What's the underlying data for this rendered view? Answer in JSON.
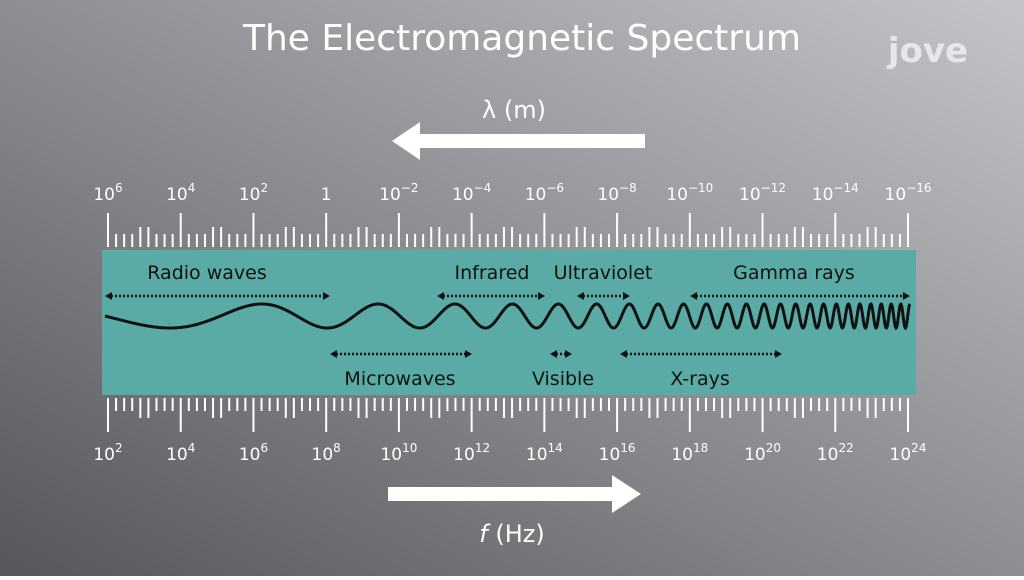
{
  "header": {
    "title": "The Electromagnetic Spectrum",
    "logo": "jove"
  },
  "wavelength": {
    "label": "λ (m)",
    "ticks": [
      {
        "base": "10",
        "exp": "6"
      },
      {
        "base": "10",
        "exp": "4"
      },
      {
        "base": "10",
        "exp": "2"
      },
      {
        "base": "1"
      },
      {
        "base": "10",
        "exp": "−2"
      },
      {
        "base": "10",
        "exp": "−4"
      },
      {
        "base": "10",
        "exp": "−6"
      },
      {
        "base": "10",
        "exp": "−8"
      },
      {
        "base": "10",
        "exp": "−10"
      },
      {
        "base": "10",
        "exp": "−12"
      },
      {
        "base": "10",
        "exp": "−14"
      },
      {
        "base": "10",
        "exp": "−16"
      }
    ]
  },
  "frequency": {
    "symbol": "f",
    "unit": "(Hz)",
    "ticks": [
      {
        "base": "10",
        "exp": "2"
      },
      {
        "base": "10",
        "exp": "4"
      },
      {
        "base": "10",
        "exp": "6"
      },
      {
        "base": "10",
        "exp": "8"
      },
      {
        "base": "10",
        "exp": "10"
      },
      {
        "base": "10",
        "exp": "12"
      },
      {
        "base": "10",
        "exp": "14"
      },
      {
        "base": "10",
        "exp": "16"
      },
      {
        "base": "10",
        "exp": "18"
      },
      {
        "base": "10",
        "exp": "20"
      },
      {
        "base": "10",
        "exp": "22"
      },
      {
        "base": "10",
        "exp": "24"
      }
    ]
  },
  "bands": [
    {
      "label": "Radio waves"
    },
    {
      "label": "Infrared"
    },
    {
      "label": "Ultraviolet"
    },
    {
      "label": "Gamma rays"
    },
    {
      "label": "Microwaves"
    },
    {
      "label": "Visible"
    },
    {
      "label": "X-rays"
    }
  ]
}
